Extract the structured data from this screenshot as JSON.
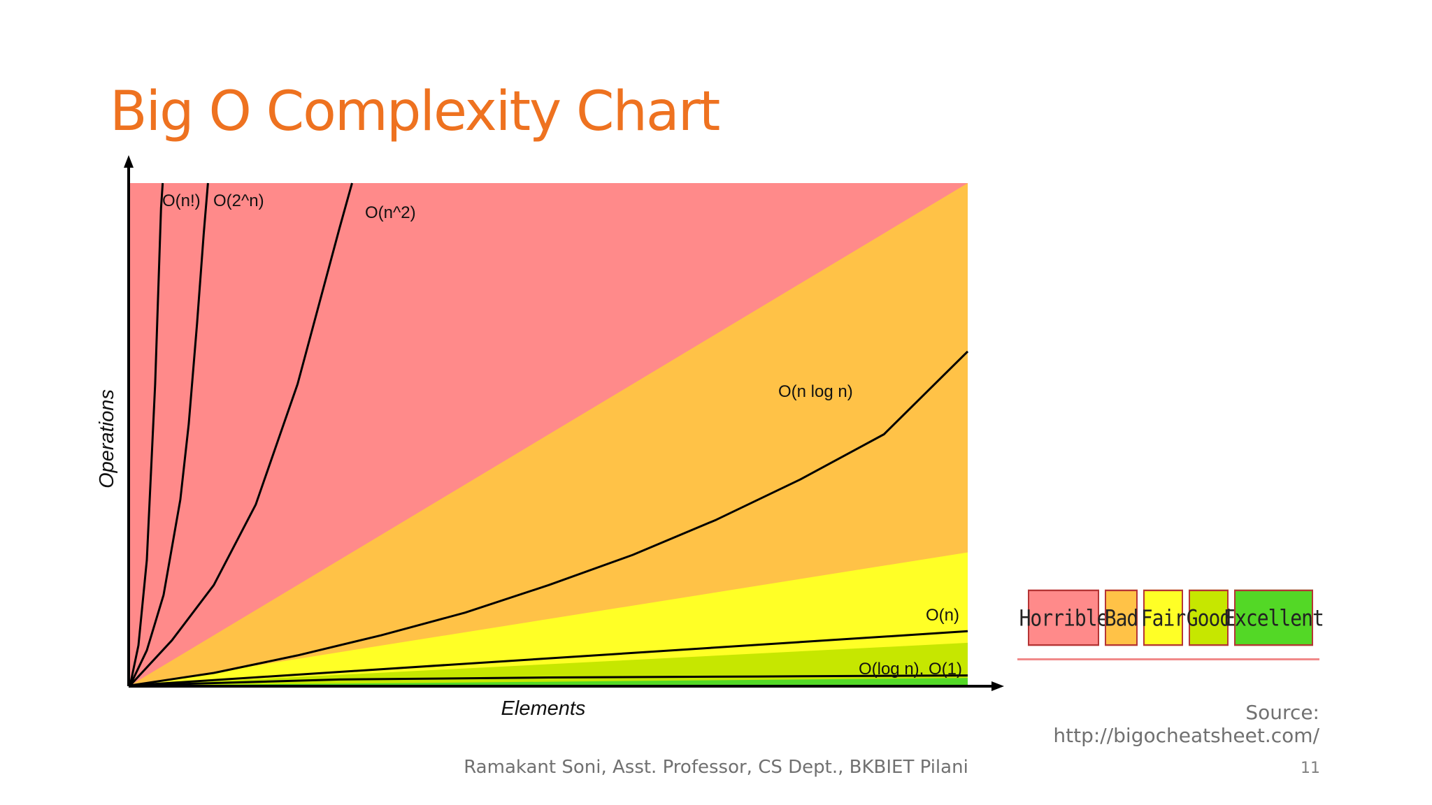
{
  "slide": {
    "title": "Big O Complexity Chart",
    "source": "Source: http://bigocheatsheet.com/",
    "footer": "Ramakant Soni, Asst. Professor, CS Dept., BKBIET Pilani",
    "page_number": "11"
  },
  "legend": {
    "items": [
      {
        "label": "Horrible",
        "color": "#ff8a8a"
      },
      {
        "label": "Bad",
        "color": "#ffc247"
      },
      {
        "label": "Fair",
        "color": "#ffff26"
      },
      {
        "label": "Good",
        "color": "#c6e700"
      },
      {
        "label": "Excellent",
        "color": "#53d826"
      }
    ]
  },
  "chart_data": {
    "type": "line",
    "xlabel": "Elements",
    "ylabel": "Operations",
    "xlim": [
      0,
      1
    ],
    "ylim": [
      0,
      1
    ],
    "regions": [
      {
        "name": "Horrible",
        "color": "#ff8a8a",
        "upper_right": 1.0
      },
      {
        "name": "Bad",
        "color": "#ffc247",
        "upper_right": 1.0
      },
      {
        "name": "Fair",
        "color": "#ffff26",
        "upper_right": 0.265
      },
      {
        "name": "Good",
        "color": "#c6e700",
        "upper_right": 0.085
      },
      {
        "name": "Excellent",
        "color": "#53d826",
        "upper_right": 0.015
      }
    ],
    "series": [
      {
        "name": "O(n!)",
        "x": [
          0,
          0.01,
          0.02,
          0.03,
          0.035,
          0.037,
          0.039
        ],
        "y": [
          0,
          0.08,
          0.25,
          0.6,
          0.85,
          0.95,
          1.0
        ]
      },
      {
        "name": "O(2^n)",
        "x": [
          0,
          0.02,
          0.04,
          0.06,
          0.07,
          0.08,
          0.088,
          0.093
        ],
        "y": [
          0,
          0.07,
          0.18,
          0.37,
          0.52,
          0.72,
          0.9,
          1.0
        ]
      },
      {
        "name": "O(n^2)",
        "x": [
          0,
          0.05,
          0.1,
          0.15,
          0.2,
          0.25,
          0.265
        ],
        "y": [
          0,
          0.09,
          0.2,
          0.36,
          0.6,
          0.91,
          1.0
        ]
      },
      {
        "name": "O(n log n)",
        "x": [
          0,
          0.1,
          0.2,
          0.3,
          0.4,
          0.5,
          0.6,
          0.7,
          0.8,
          0.9,
          1.0
        ],
        "y": [
          0,
          0.025,
          0.06,
          0.1,
          0.145,
          0.2,
          0.26,
          0.33,
          0.41,
          0.5,
          0.665
        ]
      },
      {
        "name": "O(n)",
        "x": [
          0,
          1
        ],
        "y": [
          0,
          0.108
        ]
      },
      {
        "name": "O(log n), O(1)",
        "x": [
          0,
          0.25,
          0.5,
          0.75,
          1
        ],
        "y": [
          0,
          0.012,
          0.016,
          0.018,
          0.02
        ]
      }
    ],
    "grid": false
  }
}
